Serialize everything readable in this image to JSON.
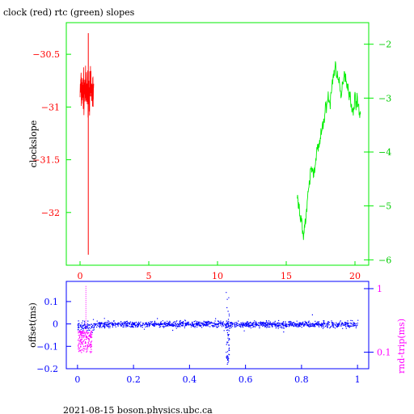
{
  "chart_data": [
    {
      "type": "line",
      "title": "clock (red) rtc (green) slopes",
      "xlabel": "",
      "ylabel": "clockslope",
      "xlim": [
        -1,
        21
      ],
      "ylim": [
        -32.5,
        -30.2
      ],
      "y2lim": [
        -6.1,
        -1.6
      ],
      "xticks": [
        "0",
        "5",
        "10",
        "15",
        "20"
      ],
      "yticks": [
        "-30.5",
        "-31",
        "-31.5",
        "-32"
      ],
      "y2ticks": [
        "-2",
        "-3",
        "-4",
        "-5",
        "-6"
      ],
      "grid": false,
      "series": [
        {
          "color": "#ff0000",
          "axis": "left",
          "x_range": [
            0,
            1
          ],
          "y_center": -30.85,
          "y_band": [
            -31.1,
            -30.45
          ],
          "spike": {
            "x": 0.6,
            "y_max": -30.3,
            "y_min": -32.4
          }
        },
        {
          "color": "#00ee00",
          "axis": "right",
          "points": [
            [
              15.8,
              -4.9
            ],
            [
              16.0,
              -5.1
            ],
            [
              16.2,
              -5.5
            ],
            [
              16.4,
              -5.3
            ],
            [
              16.6,
              -4.8
            ],
            [
              16.8,
              -4.3
            ],
            [
              17.0,
              -4.4
            ],
            [
              17.2,
              -4.0
            ],
            [
              17.4,
              -3.9
            ],
            [
              17.6,
              -3.6
            ],
            [
              17.8,
              -3.3
            ],
            [
              18.0,
              -3.0
            ],
            [
              18.2,
              -3.1
            ],
            [
              18.4,
              -2.6
            ],
            [
              18.6,
              -2.4
            ],
            [
              18.8,
              -2.7
            ],
            [
              19.0,
              -3.0
            ],
            [
              19.2,
              -2.5
            ],
            [
              19.4,
              -2.7
            ],
            [
              19.6,
              -2.9
            ],
            [
              19.8,
              -3.3
            ],
            [
              20.0,
              -3.0
            ],
            [
              20.2,
              -3.1
            ],
            [
              20.4,
              -3.3
            ]
          ]
        }
      ]
    },
    {
      "type": "scatter",
      "xlabel": "",
      "ylabel": "offset(ms)",
      "y2label": "rnd-trip(ms)",
      "xlim": [
        -0.04,
        1.04
      ],
      "ylim": [
        -0.2,
        0.19
      ],
      "y2scale": "log",
      "y2lim": [
        0.055,
        1.3
      ],
      "xticks": [
        "0",
        "0.2",
        "0.4",
        "0.6",
        "0.8",
        "1"
      ],
      "yticks": [
        "0.1",
        "0",
        "-0.1",
        "-0.2"
      ],
      "y2ticks": [
        "1",
        "0.1"
      ],
      "grid": false,
      "series": [
        {
          "color": "#0000ff",
          "axis": "left",
          "x_range": [
            0,
            1
          ],
          "y_center": 0.0,
          "y_spread": 0.02,
          "spike": {
            "x": 0.535,
            "y_min": -0.18,
            "y_max": 0.16
          }
        },
        {
          "color": "#ff00ff",
          "axis": "right",
          "x_range": [
            0,
            0.05
          ],
          "y_range": [
            0.1,
            0.22
          ],
          "spike": {
            "x": 0.03,
            "y_max": 1.1
          }
        }
      ]
    }
  ],
  "footer": "2021-08-15 boson.physics.ubc.ca"
}
